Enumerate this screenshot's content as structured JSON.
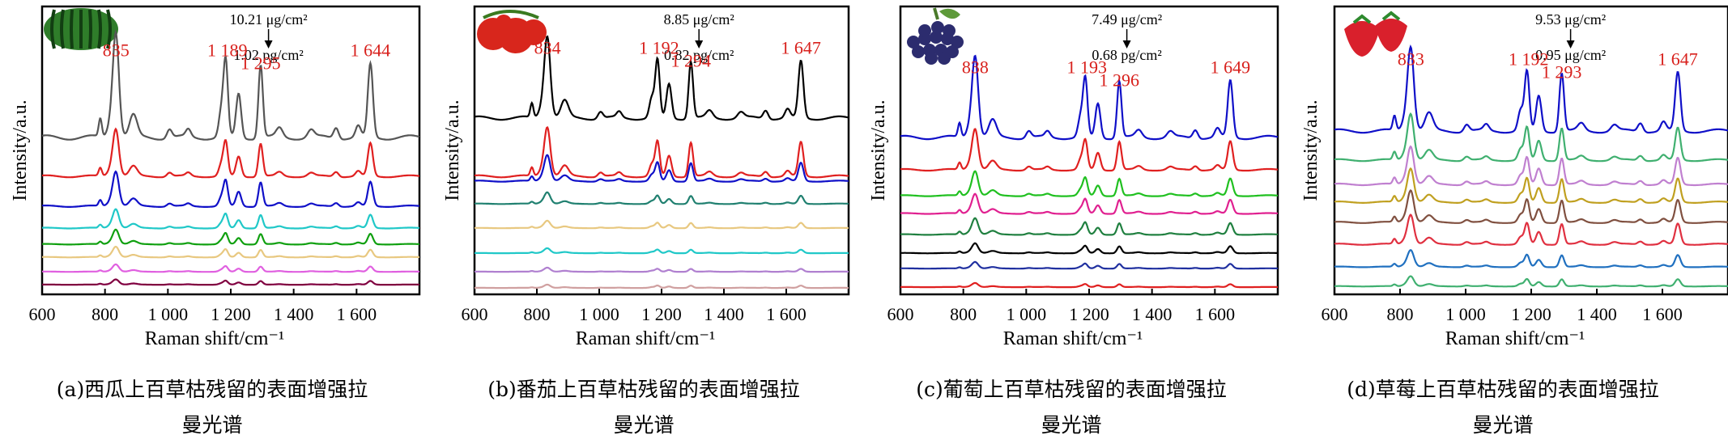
{
  "panel_colors": {
    "a": [
      "#555555",
      "#e02020",
      "#1010c8",
      "#20c8c8",
      "#10a010",
      "#e8c880",
      "#e060e0",
      "#800040"
    ],
    "b": [
      "#000000",
      "#e02020",
      "#1010c8",
      "#208070",
      "#e8c880",
      "#20c8c8",
      "#b080d0",
      "#d0a0a0"
    ],
    "c": [
      "#1010c8",
      "#e02020",
      "#20c020",
      "#e02090",
      "#208040",
      "#000000",
      "#2030a0",
      "#e02020"
    ],
    "d": [
      "#1010c8",
      "#40b070",
      "#c080d0",
      "#c0a020",
      "#805040",
      "#e03040",
      "#2070c0",
      "#40b070"
    ]
  },
  "chart_data": [
    {
      "id": "a",
      "type": "line",
      "image_icon": "watermelon-icon",
      "xlabel": "Raman shift/cm⁻¹",
      "ylabel": "Intensity/a.u.",
      "xlim": [
        600,
        1800
      ],
      "x_ticks": [
        "600",
        "800",
        "1 000",
        "1 200",
        "1 400",
        "1 600"
      ],
      "concentration_high": "10.21 μg/cm²",
      "concentration_low": "1.02 pg/cm²",
      "peaks": [
        {
          "x": 835,
          "label": "835"
        },
        {
          "x": 1189,
          "label": "1 189"
        },
        {
          "x": 1295,
          "label": "1 295"
        },
        {
          "x": 1644,
          "label": "1 644"
        }
      ],
      "series_scales": [
        1.0,
        0.45,
        0.33,
        0.18,
        0.14,
        0.1,
        0.07,
        0.05
      ],
      "caption_line1": "(a)西瓜上百草枯残留的表面增强拉",
      "caption_line2": "曼光谱"
    },
    {
      "id": "b",
      "type": "line",
      "image_icon": "tomato-icon",
      "xlabel": "Raman shift/cm⁻¹",
      "ylabel": "Intensity/a.u.",
      "xlim": [
        600,
        1800
      ],
      "x_ticks": [
        "600",
        "800",
        "1 000",
        "1 200",
        "1 400",
        "1 600"
      ],
      "concentration_high": "8.85 μg/cm²",
      "concentration_low": "0.82 pg/cm²",
      "peaks": [
        {
          "x": 834,
          "label": "834"
        },
        {
          "x": 1192,
          "label": "1 192"
        },
        {
          "x": 1294,
          "label": "1 294"
        },
        {
          "x": 1647,
          "label": "1 647"
        }
      ],
      "series_scales": [
        1.0,
        0.6,
        0.32,
        0.14,
        0.09,
        0.06,
        0.05,
        0.04
      ],
      "caption_line1": "(b)番茄上百草枯残留的表面增强拉",
      "caption_line2": "曼光谱"
    },
    {
      "id": "c",
      "type": "line",
      "image_icon": "grape-icon",
      "xlabel": "Raman shift/cm⁻¹",
      "ylabel": "Intensity/a.u.",
      "xlim": [
        600,
        1800
      ],
      "x_ticks": [
        "600",
        "800",
        "1 000",
        "1 200",
        "1 400",
        "1 600"
      ],
      "concentration_high": "7.49 μg/cm²",
      "concentration_low": "0.68 pg/cm²",
      "peaks": [
        {
          "x": 838,
          "label": "838"
        },
        {
          "x": 1193,
          "label": "1 193"
        },
        {
          "x": 1296,
          "label": "1 296"
        },
        {
          "x": 1649,
          "label": "1 649"
        }
      ],
      "series_scales": [
        1.0,
        0.5,
        0.3,
        0.24,
        0.2,
        0.12,
        0.08,
        0.05
      ],
      "caption_line1": "(c)葡萄上百草枯残留的表面增强拉",
      "caption_line2": "曼光谱"
    },
    {
      "id": "d",
      "type": "line",
      "image_icon": "strawberry-icon",
      "xlabel": "Raman shift/cm⁻¹",
      "ylabel": "Intensity/a.u.",
      "xlim": [
        600,
        1800
      ],
      "x_ticks": [
        "600",
        "800",
        "1 000",
        "1 200",
        "1 400",
        "1 600"
      ],
      "concentration_high": "9.53 μg/cm²",
      "concentration_low": "0.95 μg/cm²",
      "peaks": [
        {
          "x": 833,
          "label": "833"
        },
        {
          "x": 1192,
          "label": "1 192"
        },
        {
          "x": 1293,
          "label": "1 293"
        },
        {
          "x": 1647,
          "label": "1 647"
        }
      ],
      "series_scales": [
        1.0,
        0.55,
        0.45,
        0.4,
        0.38,
        0.35,
        0.2,
        0.12
      ],
      "caption_line1": "(d)草莓上百草枯残留的表面增强拉",
      "caption_line2": "曼光谱"
    }
  ]
}
